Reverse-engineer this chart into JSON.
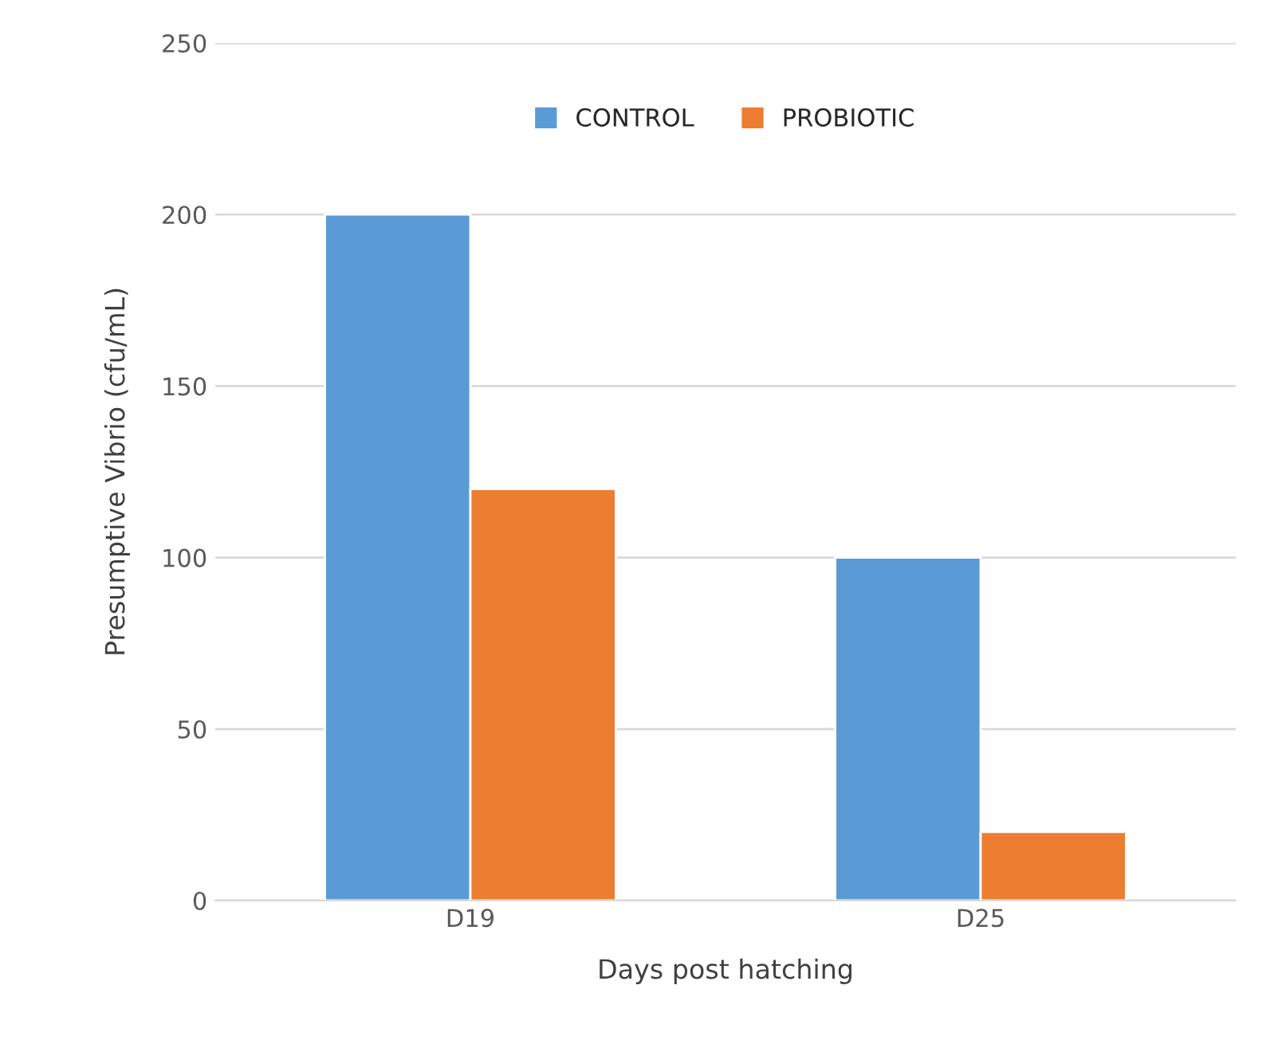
{
  "chart_data": {
    "type": "bar",
    "xlabel": "Days post hatching",
    "ylabel": "Presumptive Vibrio (cfu/mL)",
    "categories": [
      "D19",
      "D25"
    ],
    "series": [
      {
        "name": "CONTROL",
        "color": "#5b9bd5",
        "values": [
          200,
          100
        ]
      },
      {
        "name": "PROBIOTIC",
        "color": "#ed7d31",
        "values": [
          120,
          20
        ]
      }
    ],
    "ylim": [
      0,
      250
    ],
    "yticks": [
      0,
      50,
      100,
      150,
      200,
      250
    ],
    "grid": "y",
    "legend": "top"
  }
}
